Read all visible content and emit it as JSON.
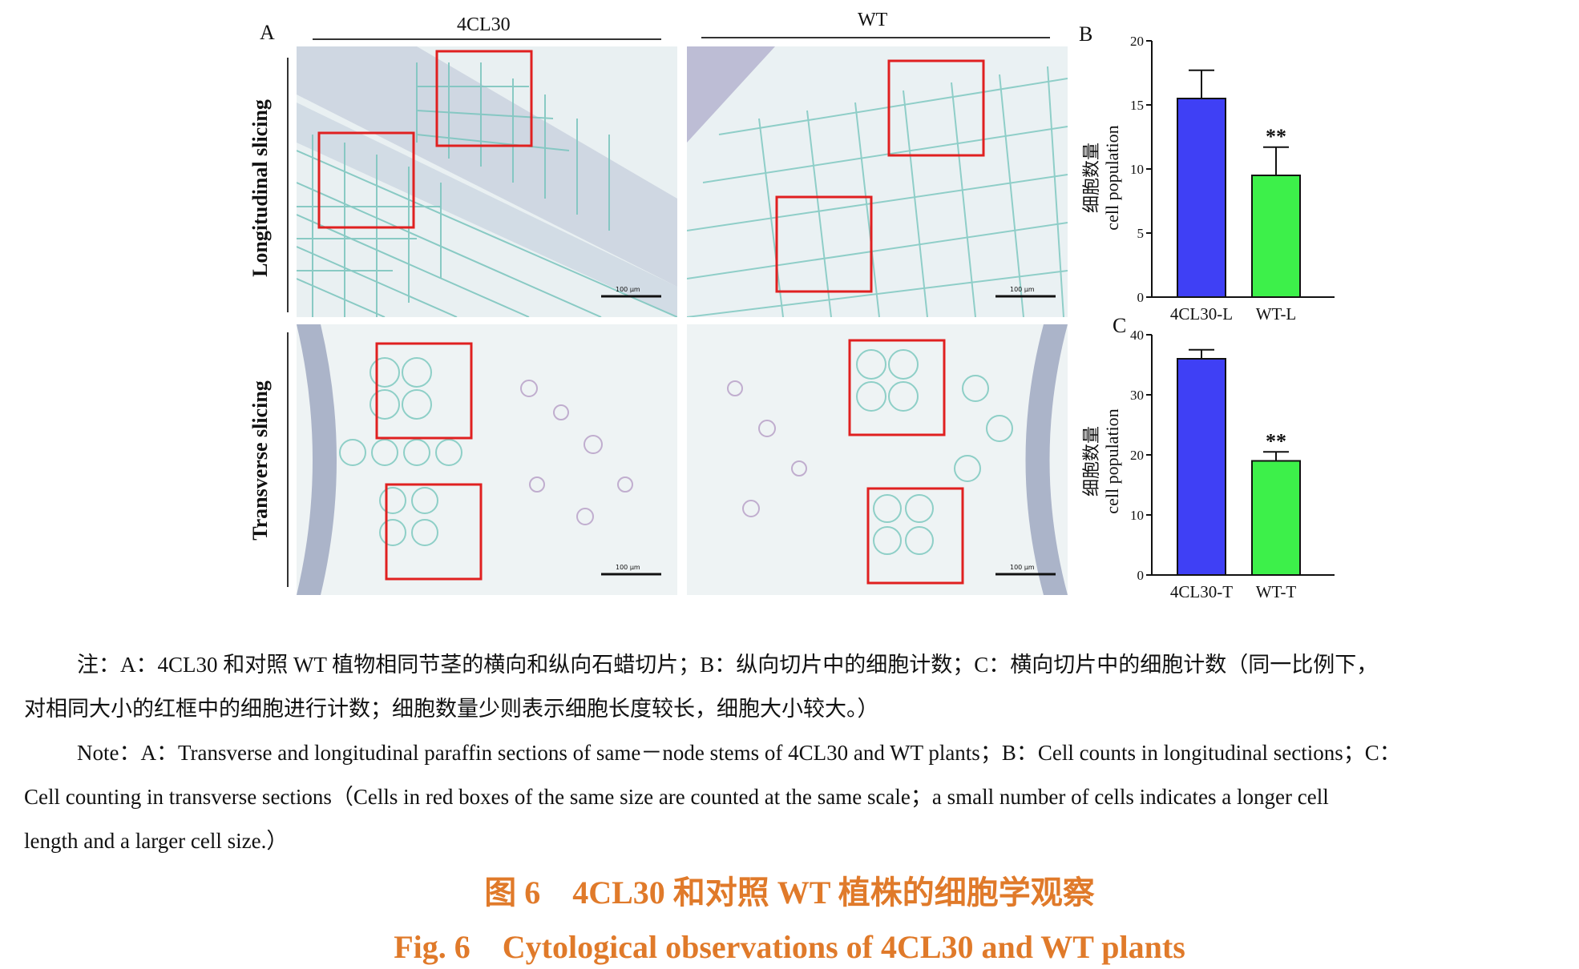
{
  "figure": {
    "panel_a_label": "A",
    "panel_b_label": "B",
    "panel_c_label": "C",
    "col_4cl30": "4CL30",
    "col_wt": "WT",
    "row_longitudinal": "Longitudinal slicing",
    "row_transverse": "Transverse slicing",
    "scale_bar_text": "100 μm",
    "colors": {
      "bar_4cl30": "#3f40f5",
      "bar_wt": "#3df04a",
      "red_box": "#e02020"
    }
  },
  "chart_data": [
    {
      "type": "bar",
      "panel": "B",
      "categories": [
        "4CL30-L",
        "WT-L"
      ],
      "values": [
        15.5,
        9.5
      ],
      "error": [
        2.2,
        2.2
      ],
      "significance": [
        "",
        "**"
      ],
      "ylabel_cn": "细胞数量",
      "ylabel_en": "cell population",
      "ylim": [
        0,
        20
      ],
      "yticks": [
        0,
        5,
        10,
        15,
        20
      ]
    },
    {
      "type": "bar",
      "panel": "C",
      "categories": [
        "4CL30-T",
        "WT-T"
      ],
      "values": [
        36,
        19
      ],
      "error": [
        1.5,
        1.5
      ],
      "significance": [
        "",
        "**"
      ],
      "ylabel_cn": "细胞数量",
      "ylabel_en": "cell population",
      "ylim": [
        0,
        40
      ],
      "yticks": [
        0,
        10,
        20,
        30,
        40
      ]
    }
  ],
  "note_cn_1": "注：A：4CL30 和对照 WT 植物相同节茎的横向和纵向石蜡切片；B：纵向切片中的细胞计数；C：横向切片中的细胞计数（同一比例下，",
  "note_cn_2": "对相同大小的红框中的细胞进行计数；细胞数量少则表示细胞长度较长，细胞大小较大。）",
  "note_en_1": "Note：A：Transverse and longitudinal paraffin sections of same－node stems of 4CL30 and WT plants；B：Cell counts in longitudinal sections；C：",
  "note_en_2": "Cell counting in transverse sections（Cells in red boxes of the same size are counted at the same scale；a small number of cells indicates a longer cell",
  "note_en_3": "length and a larger cell size.）",
  "caption_cn": "图 6　4CL30 和对照 WT 植株的细胞学观察",
  "caption_en": "Fig. 6　Cytological observations of 4CL30 and WT plants"
}
